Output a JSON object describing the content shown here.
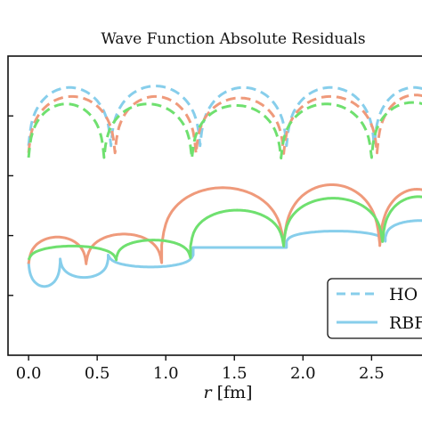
{
  "chart_data": {
    "type": "line",
    "title": "Wave Function Absolute Residuals",
    "xlabel_var": "r",
    "xlabel_unit": "[fm]",
    "ylabel": "",
    "xlim": [
      -0.15,
      2.9
    ],
    "ylim": [
      0,
      10
    ],
    "x_ticks": [
      "0.0",
      "0.5",
      "1.0",
      "1.5",
      "2.0",
      "2.5"
    ],
    "x_tick_values": [
      0.0,
      0.5,
      1.0,
      1.5,
      2.0,
      2.5
    ],
    "y_tick_values": [
      2,
      4,
      6,
      8
    ],
    "y_tick_labels": [],
    "grid": false,
    "legend_position": "lower-right",
    "legend": [
      {
        "label": "HO",
        "style": "dashed",
        "color": "#87ceeb"
      },
      {
        "label": "RBF",
        "style": "solid",
        "color": "#87ceeb"
      }
    ],
    "series": [
      {
        "name": "HO",
        "style": "dashed",
        "color": "#87ceeb",
        "arches": [
          {
            "a": 0.0,
            "b": 0.6,
            "top": 8.95
          },
          {
            "a": 0.6,
            "b": 1.25,
            "top": 9.0
          },
          {
            "a": 1.25,
            "b": 1.88,
            "top": 8.95
          },
          {
            "a": 1.88,
            "b": 2.52,
            "top": 8.95
          },
          {
            "a": 2.52,
            "b": 3.1,
            "top": 8.95
          }
        ],
        "depth": 5.8
      },
      {
        "name": "",
        "style": "dashed",
        "color": "#ef9a7b",
        "arches": [
          {
            "a": 0.0,
            "b": 0.63,
            "top": 8.65
          },
          {
            "a": 0.63,
            "b": 1.22,
            "top": 8.65
          },
          {
            "a": 1.22,
            "b": 1.86,
            "top": 8.6
          },
          {
            "a": 1.86,
            "b": 2.54,
            "top": 8.65
          },
          {
            "a": 2.54,
            "b": 3.1,
            "top": 8.7
          }
        ],
        "depth": 5.6
      },
      {
        "name": "",
        "style": "dashed",
        "color": "#6fe06f",
        "arches": [
          {
            "a": 0.0,
            "b": 0.55,
            "top": 8.4
          },
          {
            "a": 0.55,
            "b": 1.19,
            "top": 8.4
          },
          {
            "a": 1.19,
            "b": 1.84,
            "top": 8.35
          },
          {
            "a": 1.84,
            "b": 2.5,
            "top": 8.4
          },
          {
            "a": 2.5,
            "b": 3.1,
            "top": 8.45
          }
        ],
        "depth": 5.5
      },
      {
        "name": "RBF",
        "style": "solid",
        "color": "#87ceeb",
        "arches": [
          {
            "a": 0.0,
            "b": 0.23,
            "top": 2.3
          },
          {
            "a": 0.23,
            "b": 0.58,
            "top": 2.6
          },
          {
            "a": 0.58,
            "b": 1.2,
            "top": 2.95
          },
          {
            "a": 1.2,
            "b": 1.88,
            "top": 3.6
          },
          {
            "a": 1.88,
            "b": 2.6,
            "top": 4.15
          },
          {
            "a": 2.6,
            "b": 3.1,
            "top": 4.5
          }
        ],
        "depth": 3.6
      },
      {
        "name": "",
        "style": "solid",
        "color": "#ef9a7b",
        "arches": [
          {
            "a": 0.0,
            "b": 0.42,
            "top": 3.95
          },
          {
            "a": 0.42,
            "b": 0.97,
            "top": 4.05
          },
          {
            "a": 0.97,
            "b": 1.86,
            "top": 5.6
          },
          {
            "a": 1.86,
            "b": 2.56,
            "top": 5.7
          },
          {
            "a": 2.56,
            "b": 3.1,
            "top": 5.55
          }
        ],
        "depth": 2.5
      },
      {
        "name": "",
        "style": "solid",
        "color": "#6fe06f",
        "arches": [
          {
            "a": 0.0,
            "b": 0.64,
            "top": 3.65
          },
          {
            "a": 0.64,
            "b": 1.18,
            "top": 3.85
          },
          {
            "a": 1.18,
            "b": 1.86,
            "top": 4.85
          },
          {
            "a": 1.86,
            "b": 2.58,
            "top": 5.25
          },
          {
            "a": 2.58,
            "b": 3.1,
            "top": 5.3
          }
        ],
        "depth": 2.9
      }
    ]
  }
}
